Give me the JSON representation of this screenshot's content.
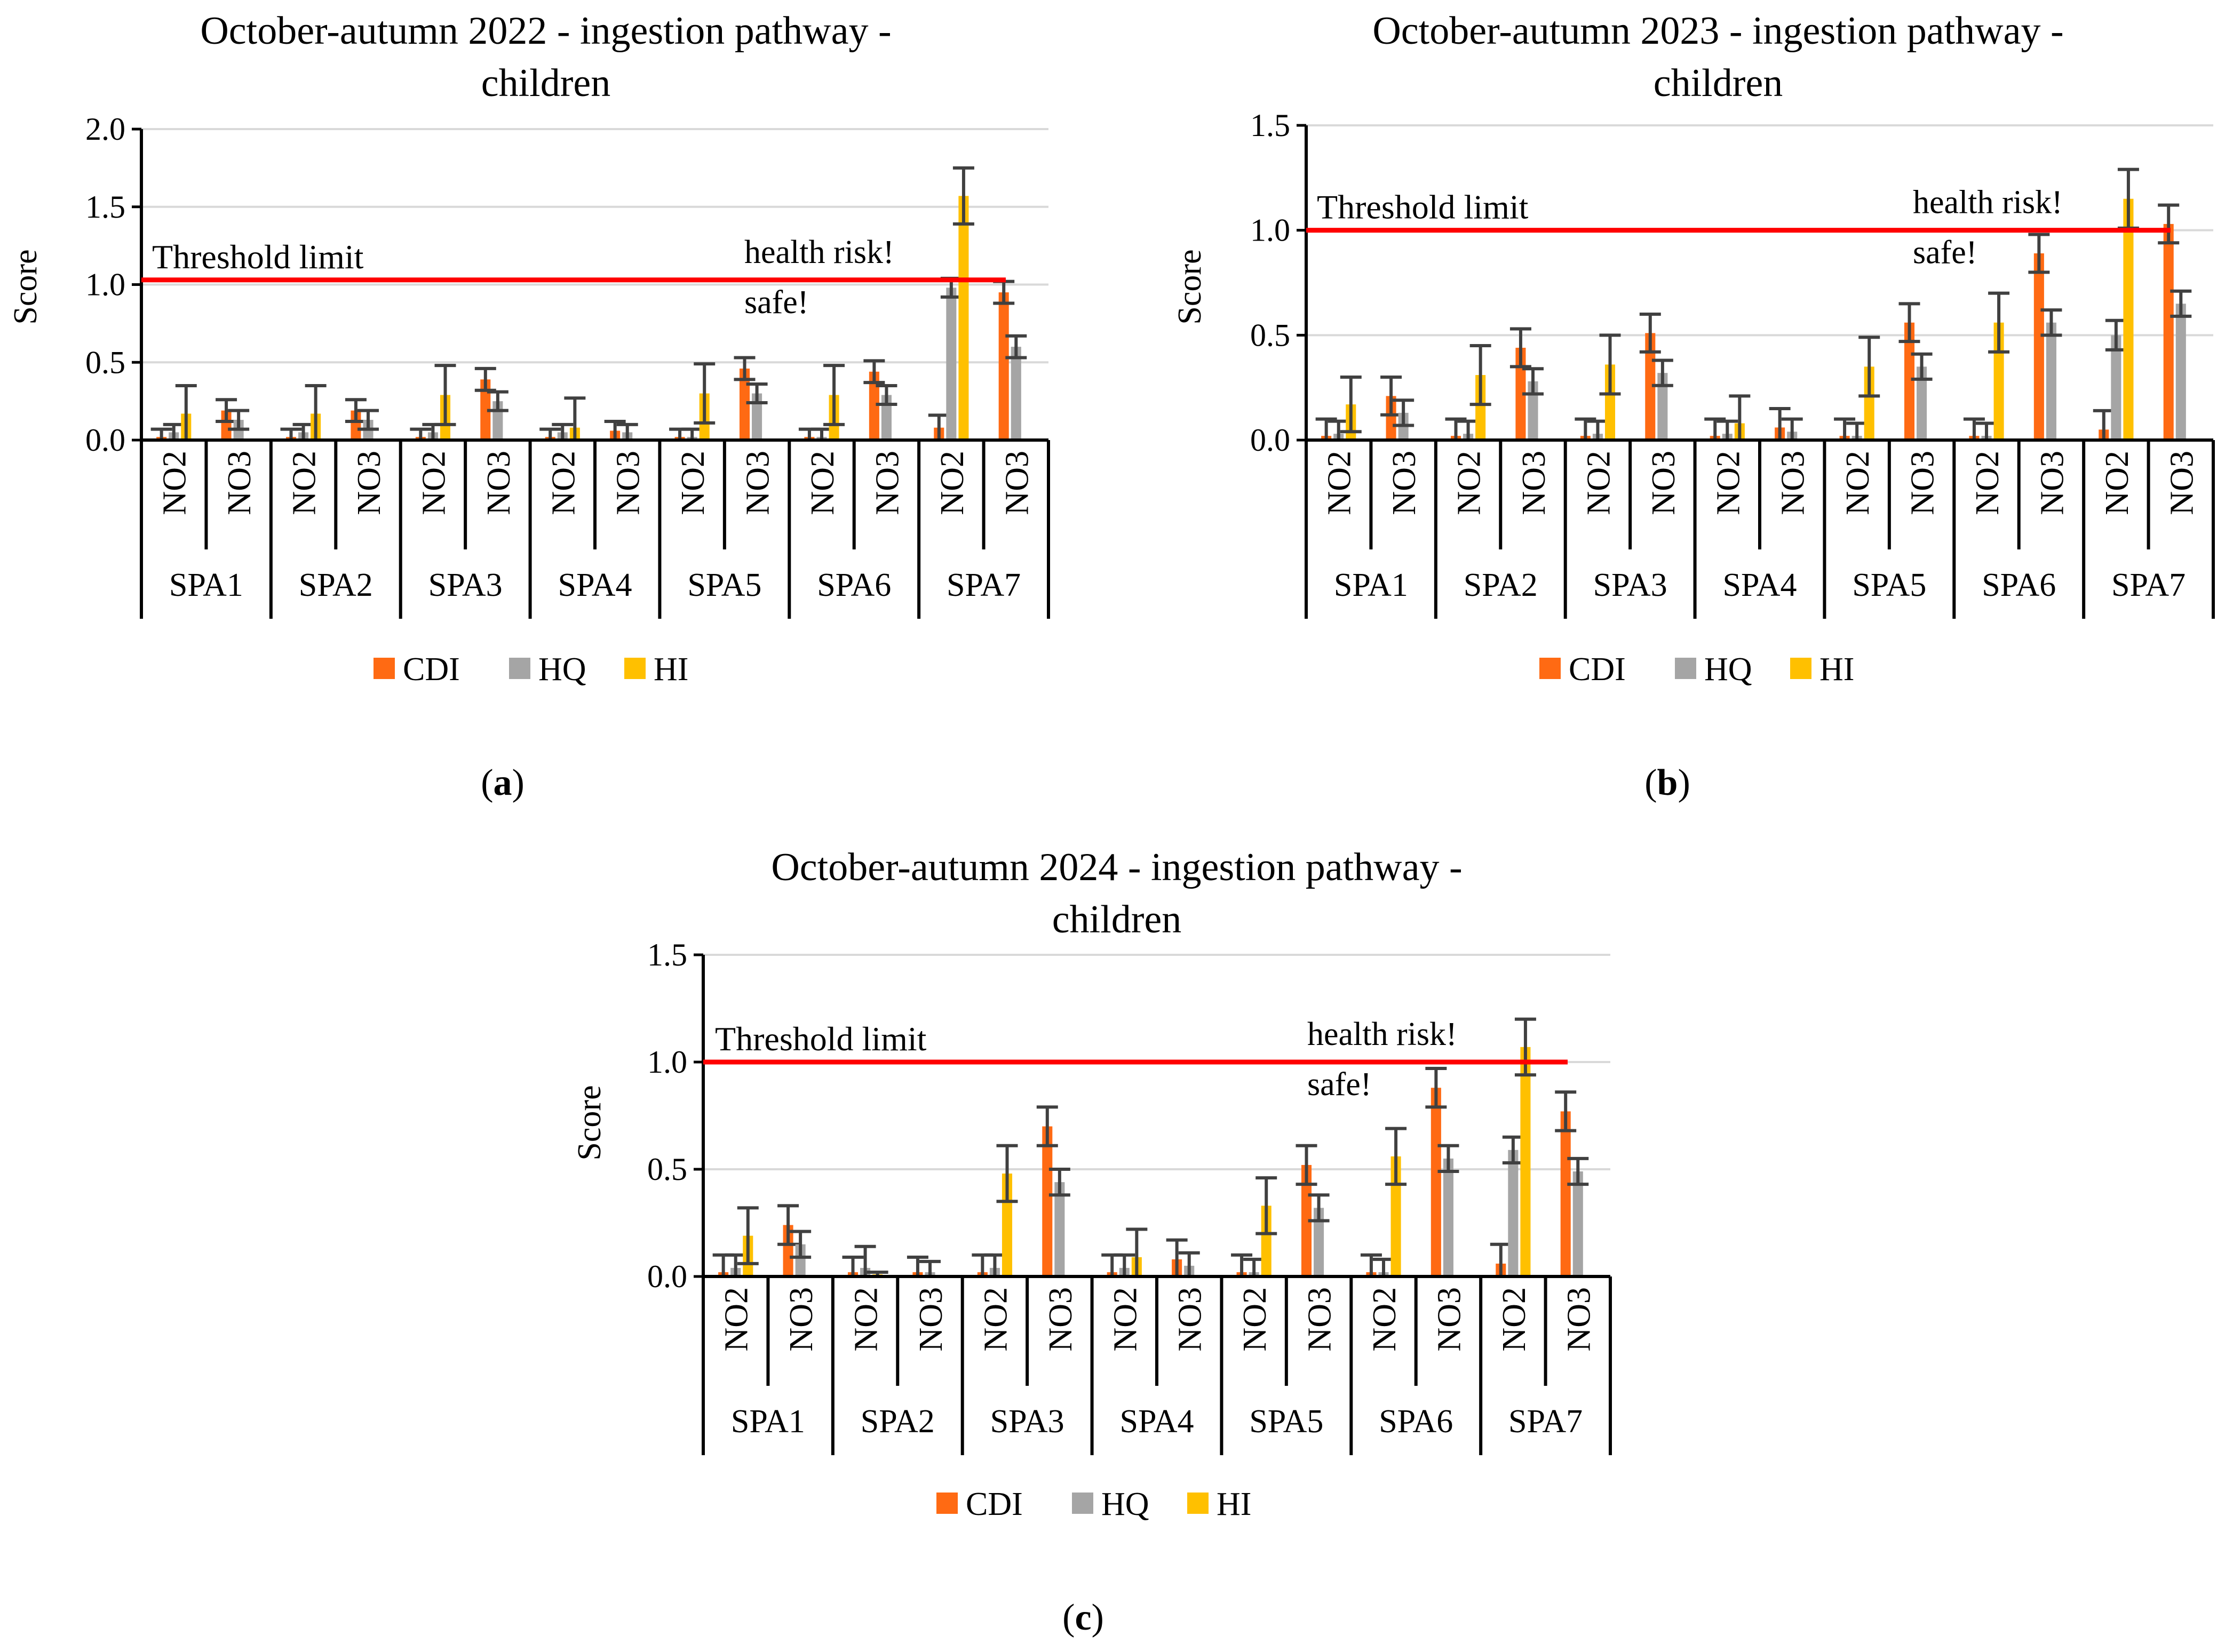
{
  "colors": {
    "CDI": "#ff6a13",
    "HQ": "#a5a5a5",
    "HI": "#ffc000",
    "threshold": "#ff0000",
    "grid": "#d9d9d9",
    "error": "#404040"
  },
  "chart_data": [
    {
      "type": "bar",
      "caption_letter": "a",
      "title_line1": "October-autumn 2022 - ingestion pathway -",
      "title_line2": "children",
      "ylabel": "Score",
      "ylim": [
        0,
        2.0
      ],
      "yticks": [
        "0.0",
        "0.5",
        "1.0",
        "1.5",
        "2.0"
      ],
      "threshold_value": 1.03,
      "threshold_label": "Threshold limit",
      "annotation_above": "health risk!",
      "annotation_below": "safe!",
      "groups": [
        "SPA1",
        "SPA2",
        "SPA3",
        "SPA4",
        "SPA5",
        "SPA6",
        "SPA7"
      ],
      "categories": [
        "NO2",
        "NO3"
      ],
      "series": [
        {
          "name": "CDI",
          "values": [
            [
              0.02,
              0.19
            ],
            [
              0.02,
              0.19
            ],
            [
              0.02,
              0.39
            ],
            [
              0.02,
              0.06
            ],
            [
              0.02,
              0.46
            ],
            [
              0.02,
              0.44
            ],
            [
              0.08,
              0.95
            ]
          ],
          "errors": [
            [
              0.05,
              0.07
            ],
            [
              0.05,
              0.07
            ],
            [
              0.05,
              0.07
            ],
            [
              0.05,
              0.06
            ],
            [
              0.05,
              0.07
            ],
            [
              0.05,
              0.07
            ],
            [
              0.08,
              0.07
            ]
          ]
        },
        {
          "name": "HQ",
          "values": [
            [
              0.05,
              0.13
            ],
            [
              0.05,
              0.13
            ],
            [
              0.05,
              0.25
            ],
            [
              0.05,
              0.05
            ],
            [
              0.02,
              0.3
            ],
            [
              0.02,
              0.29
            ],
            [
              0.98,
              0.6
            ]
          ],
          "errors": [
            [
              0.05,
              0.06
            ],
            [
              0.05,
              0.06
            ],
            [
              0.05,
              0.06
            ],
            [
              0.05,
              0.05
            ],
            [
              0.05,
              0.06
            ],
            [
              0.05,
              0.06
            ],
            [
              0.06,
              0.07
            ]
          ]
        },
        {
          "name": "HI",
          "values": [
            [
              0.17,
              null
            ],
            [
              0.17,
              null
            ],
            [
              0.29,
              null
            ],
            [
              0.08,
              null
            ],
            [
              0.3,
              null
            ],
            [
              0.29,
              null
            ],
            [
              1.57,
              null
            ]
          ],
          "errors": [
            [
              0.18,
              null
            ],
            [
              0.18,
              null
            ],
            [
              0.19,
              null
            ],
            [
              0.19,
              null
            ],
            [
              0.19,
              null
            ],
            [
              0.19,
              null
            ],
            [
              0.18,
              null
            ]
          ]
        }
      ],
      "legend": [
        "CDI",
        "HQ",
        "HI"
      ]
    },
    {
      "type": "bar",
      "caption_letter": "b",
      "title_line1": "October-autumn 2023 - ingestion pathway -",
      "title_line2": "children",
      "ylabel": "Score",
      "ylim": [
        0,
        1.5
      ],
      "yticks": [
        "0.0",
        "0.5",
        "1.0",
        "1.5"
      ],
      "threshold_value": 1.0,
      "threshold_label": "Threshold limit",
      "annotation_above": "health risk!",
      "annotation_below": "safe!",
      "groups": [
        "SPA1",
        "SPA2",
        "SPA3",
        "SPA4",
        "SPA5",
        "SPA6",
        "SPA7"
      ],
      "categories": [
        "NO2",
        "NO3"
      ],
      "series": [
        {
          "name": "CDI",
          "values": [
            [
              0.02,
              0.21
            ],
            [
              0.02,
              0.44
            ],
            [
              0.02,
              0.51
            ],
            [
              0.02,
              0.06
            ],
            [
              0.02,
              0.56
            ],
            [
              0.02,
              0.89
            ],
            [
              0.05,
              1.03
            ]
          ],
          "errors": [
            [
              0.08,
              0.09
            ],
            [
              0.08,
              0.09
            ],
            [
              0.08,
              0.09
            ],
            [
              0.08,
              0.09
            ],
            [
              0.08,
              0.09
            ],
            [
              0.08,
              0.09
            ],
            [
              0.09,
              0.09
            ]
          ]
        },
        {
          "name": "HQ",
          "values": [
            [
              0.03,
              0.13
            ],
            [
              0.03,
              0.28
            ],
            [
              0.03,
              0.32
            ],
            [
              0.03,
              0.04
            ],
            [
              0.02,
              0.35
            ],
            [
              0.02,
              0.56
            ],
            [
              0.5,
              0.65
            ]
          ],
          "errors": [
            [
              0.06,
              0.06
            ],
            [
              0.06,
              0.06
            ],
            [
              0.06,
              0.06
            ],
            [
              0.06,
              0.06
            ],
            [
              0.06,
              0.06
            ],
            [
              0.06,
              0.06
            ],
            [
              0.07,
              0.06
            ]
          ]
        },
        {
          "name": "HI",
          "values": [
            [
              0.17,
              null
            ],
            [
              0.31,
              null
            ],
            [
              0.36,
              null
            ],
            [
              0.08,
              null
            ],
            [
              0.35,
              null
            ],
            [
              0.56,
              null
            ],
            [
              1.15,
              null
            ]
          ],
          "errors": [
            [
              0.13,
              null
            ],
            [
              0.14,
              null
            ],
            [
              0.14,
              null
            ],
            [
              0.13,
              null
            ],
            [
              0.14,
              null
            ],
            [
              0.14,
              null
            ],
            [
              0.14,
              null
            ]
          ]
        }
      ],
      "legend": [
        "CDI",
        "HQ",
        "HI"
      ]
    },
    {
      "type": "bar",
      "caption_letter": "c",
      "title_line1": "October-autumn 2024 - ingestion pathway -",
      "title_line2": "children",
      "ylabel": "Score",
      "ylim": [
        0,
        1.5
      ],
      "yticks": [
        "0.0",
        "0.5",
        "1.0",
        "1.5"
      ],
      "threshold_value": 1.0,
      "threshold_label": "Threshold limit",
      "annotation_above": "health risk!",
      "annotation_below": "safe!",
      "groups": [
        "SPA1",
        "SPA2",
        "SPA3",
        "SPA4",
        "SPA5",
        "SPA6",
        "SPA7"
      ],
      "categories": [
        "NO2",
        "NO3"
      ],
      "series": [
        {
          "name": "CDI",
          "values": [
            [
              0.02,
              0.24
            ],
            [
              0.02,
              0.02
            ],
            [
              0.02,
              0.7
            ],
            [
              0.02,
              0.08
            ],
            [
              0.02,
              0.52
            ],
            [
              0.02,
              0.88
            ],
            [
              0.06,
              0.77
            ]
          ],
          "errors": [
            [
              0.08,
              0.09
            ],
            [
              0.07,
              0.07
            ],
            [
              0.08,
              0.09
            ],
            [
              0.08,
              0.09
            ],
            [
              0.08,
              0.09
            ],
            [
              0.08,
              0.09
            ],
            [
              0.09,
              0.09
            ]
          ]
        },
        {
          "name": "HQ",
          "values": [
            [
              0.04,
              0.15
            ],
            [
              0.04,
              0.02
            ],
            [
              0.04,
              0.44
            ],
            [
              0.04,
              0.05
            ],
            [
              0.02,
              0.32
            ],
            [
              0.02,
              0.55
            ],
            [
              0.59,
              0.49
            ]
          ],
          "errors": [
            [
              0.06,
              0.06
            ],
            [
              0.1,
              0.05
            ],
            [
              0.06,
              0.06
            ],
            [
              0.06,
              0.06
            ],
            [
              0.06,
              0.06
            ],
            [
              0.06,
              0.06
            ],
            [
              0.06,
              0.06
            ]
          ]
        },
        {
          "name": "HI",
          "values": [
            [
              0.19,
              null
            ],
            [
              0.01,
              null
            ],
            [
              0.48,
              null
            ],
            [
              0.09,
              null
            ],
            [
              0.33,
              null
            ],
            [
              0.56,
              null
            ],
            [
              1.07,
              null
            ]
          ],
          "errors": [
            [
              0.13,
              null
            ],
            [
              0.01,
              null
            ],
            [
              0.13,
              null
            ],
            [
              0.13,
              null
            ],
            [
              0.13,
              null
            ],
            [
              0.13,
              null
            ],
            [
              0.13,
              null
            ]
          ]
        }
      ],
      "legend": [
        "CDI",
        "HQ",
        "HI"
      ]
    }
  ]
}
